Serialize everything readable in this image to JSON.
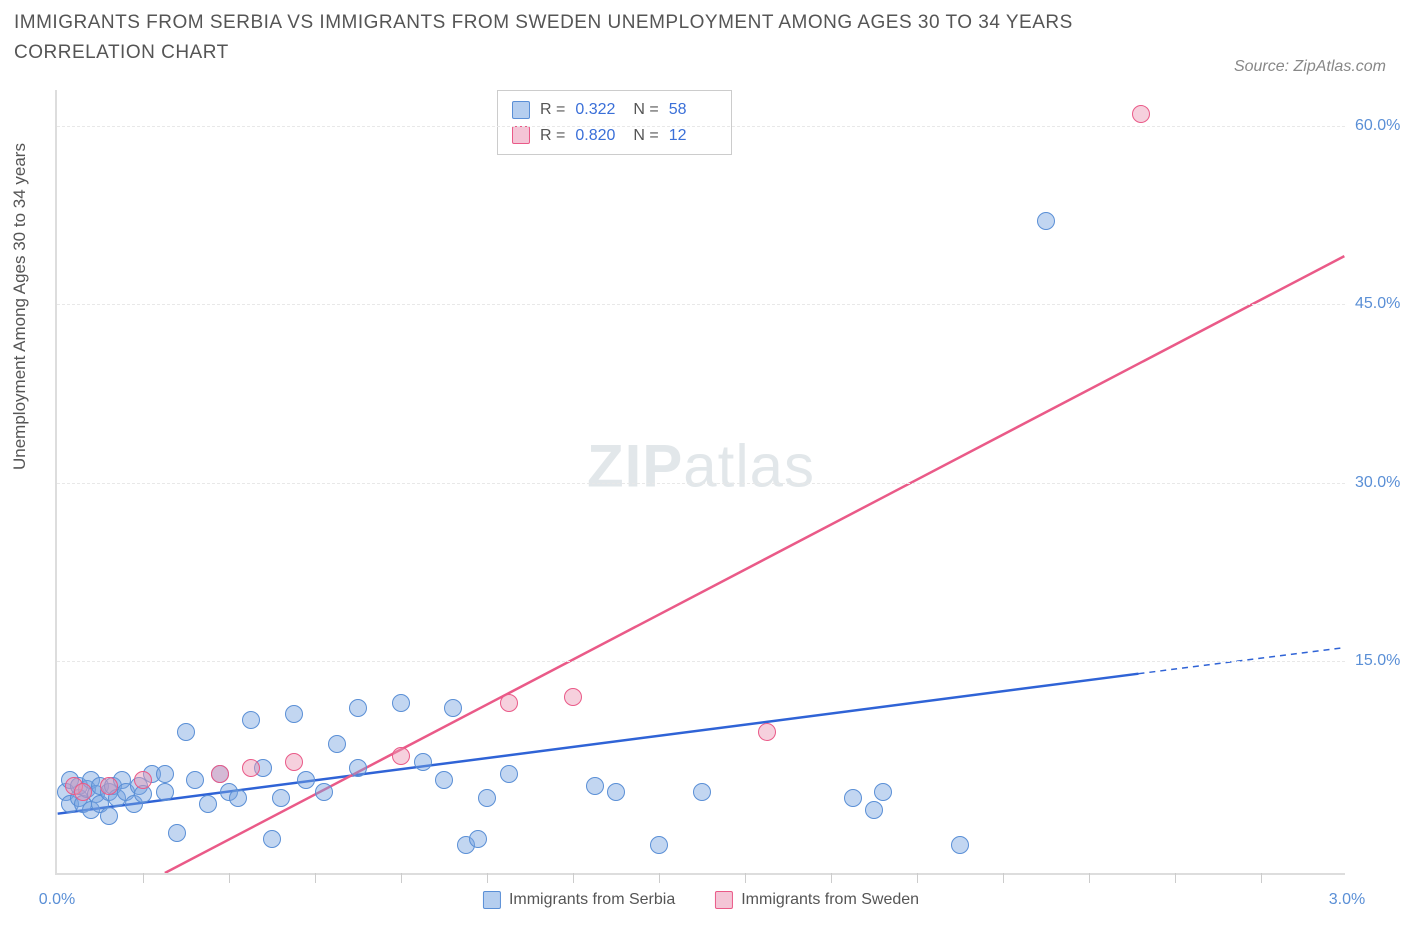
{
  "title": "IMMIGRANTS FROM SERBIA VS IMMIGRANTS FROM SWEDEN UNEMPLOYMENT AMONG AGES 30 TO 34 YEARS CORRELATION CHART",
  "source": "Source: ZipAtlas.com",
  "watermark_bold": "ZIP",
  "watermark_light": "atlas",
  "y_axis_label": "Unemployment Among Ages 30 to 34 years",
  "chart": {
    "type": "scatter",
    "background_color": "#ffffff",
    "grid_color": "#e8e8e8",
    "axis_color": "#dddddd",
    "tick_label_color": "#5a8fd6",
    "tick_fontsize": 16,
    "xlim": [
      0.0,
      3.0
    ],
    "ylim": [
      -3.0,
      63.0
    ],
    "x_ticks": [
      0.0,
      3.0
    ],
    "x_tick_labels": [
      "0.0%",
      "3.0%"
    ],
    "x_minor_ticks": [
      0.2,
      0.4,
      0.6,
      0.8,
      1.0,
      1.2,
      1.4,
      1.6,
      1.8,
      2.0,
      2.2,
      2.4,
      2.6,
      2.8
    ],
    "y_ticks": [
      15.0,
      30.0,
      45.0,
      60.0
    ],
    "y_tick_labels": [
      "15.0%",
      "30.0%",
      "45.0%",
      "60.0%"
    ],
    "point_radius": 9,
    "point_stroke_width": 1.5,
    "series": [
      {
        "id": "serbia",
        "label": "Immigrants from Serbia",
        "fill": "rgba(120,165,225,0.45)",
        "stroke": "#5a8fd6",
        "swatch_fill": "rgba(120,165,225,0.55)",
        "swatch_stroke": "#5a8fd6",
        "R": "0.322",
        "N": "58",
        "trend": {
          "x1": 0.0,
          "y1": 2.0,
          "x2": 2.52,
          "y2": 13.8,
          "color": "#2f63d6",
          "width": 2.5,
          "dash": false
        },
        "trend_ext": {
          "x1": 2.52,
          "y1": 13.8,
          "x2": 3.0,
          "y2": 16.0,
          "color": "#2f63d6",
          "width": 1.5,
          "dash": true
        },
        "points": [
          [
            0.02,
            4.0
          ],
          [
            0.03,
            3.0
          ],
          [
            0.03,
            5.0
          ],
          [
            0.05,
            3.5
          ],
          [
            0.05,
            4.5
          ],
          [
            0.06,
            3.0
          ],
          [
            0.07,
            4.2
          ],
          [
            0.08,
            5.0
          ],
          [
            0.08,
            2.5
          ],
          [
            0.09,
            3.8
          ],
          [
            0.1,
            3.0
          ],
          [
            0.1,
            4.5
          ],
          [
            0.12,
            4.0
          ],
          [
            0.12,
            2.0
          ],
          [
            0.13,
            4.5
          ],
          [
            0.14,
            3.5
          ],
          [
            0.15,
            5.0
          ],
          [
            0.16,
            4.0
          ],
          [
            0.18,
            3.0
          ],
          [
            0.19,
            4.5
          ],
          [
            0.2,
            3.8
          ],
          [
            0.22,
            5.5
          ],
          [
            0.25,
            4.0
          ],
          [
            0.25,
            5.5
          ],
          [
            0.28,
            0.5
          ],
          [
            0.3,
            9.0
          ],
          [
            0.32,
            5.0
          ],
          [
            0.35,
            3.0
          ],
          [
            0.38,
            5.5
          ],
          [
            0.4,
            4.0
          ],
          [
            0.45,
            10.0
          ],
          [
            0.48,
            6.0
          ],
          [
            0.5,
            0.0
          ],
          [
            0.52,
            3.5
          ],
          [
            0.55,
            10.5
          ],
          [
            0.58,
            5.0
          ],
          [
            0.62,
            4.0
          ],
          [
            0.65,
            8.0
          ],
          [
            0.7,
            11.0
          ],
          [
            0.7,
            6.0
          ],
          [
            0.8,
            11.5
          ],
          [
            0.85,
            6.5
          ],
          [
            0.9,
            5.0
          ],
          [
            0.92,
            11.0
          ],
          [
            0.95,
            -0.5
          ],
          [
            0.98,
            0.0
          ],
          [
            1.0,
            3.5
          ],
          [
            1.05,
            5.5
          ],
          [
            1.25,
            4.5
          ],
          [
            1.3,
            4.0
          ],
          [
            1.4,
            -0.5
          ],
          [
            1.5,
            4.0
          ],
          [
            1.85,
            3.5
          ],
          [
            1.9,
            2.5
          ],
          [
            1.92,
            4.0
          ],
          [
            2.1,
            -0.5
          ],
          [
            2.3,
            52.0
          ],
          [
            0.42,
            3.5
          ]
        ]
      },
      {
        "id": "sweden",
        "label": "Immigrants from Sweden",
        "fill": "rgba(235,150,180,0.45)",
        "stroke": "#ea5a88",
        "swatch_fill": "rgba(235,150,180,0.55)",
        "swatch_stroke": "#ea5a88",
        "R": "0.820",
        "N": "12",
        "trend": {
          "x1": 0.25,
          "y1": -3.0,
          "x2": 3.0,
          "y2": 49.0,
          "color": "#ea5a88",
          "width": 2.5,
          "dash": false
        },
        "points": [
          [
            0.04,
            4.5
          ],
          [
            0.06,
            4.0
          ],
          [
            0.12,
            4.5
          ],
          [
            0.2,
            5.0
          ],
          [
            0.38,
            5.5
          ],
          [
            0.45,
            6.0
          ],
          [
            0.55,
            6.5
          ],
          [
            0.8,
            7.0
          ],
          [
            1.05,
            11.5
          ],
          [
            1.2,
            12.0
          ],
          [
            1.65,
            9.0
          ],
          [
            2.52,
            61.0
          ]
        ]
      }
    ]
  },
  "stats_labels": {
    "R": "R =",
    "N": "N ="
  }
}
